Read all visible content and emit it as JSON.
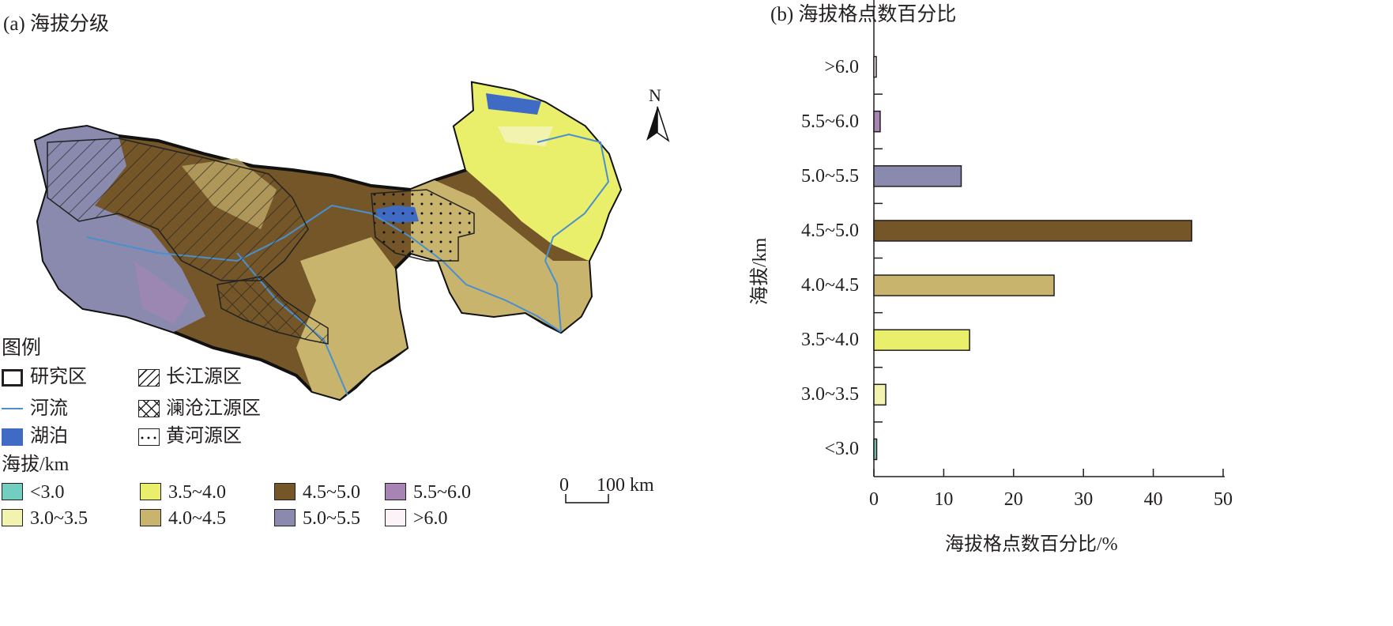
{
  "panel_a": {
    "title": "(a) 海拔分级",
    "north_label": "N",
    "scale_bar": {
      "zero": "0",
      "distance": "100 km"
    },
    "legend": {
      "title": "图例",
      "items": [
        {
          "label": "研究区",
          "symbol": "outline"
        },
        {
          "label": "长江源区",
          "symbol": "diagonal-hatch"
        },
        {
          "label": "河流",
          "symbol": "line",
          "color": "#4a8fd0"
        },
        {
          "label": "澜沧江源区",
          "symbol": "cross-hatch"
        },
        {
          "label": "湖泊",
          "symbol": "fill",
          "color": "#3f6bc4"
        },
        {
          "label": "黄河源区",
          "symbol": "dots"
        }
      ],
      "elevation_title": "海拔/km",
      "elevation_classes": [
        {
          "label": "<3.0",
          "color": "#72cfc0"
        },
        {
          "label": "3.0~3.5",
          "color": "#f3f3b0"
        },
        {
          "label": "3.5~4.0",
          "color": "#e9ef6a"
        },
        {
          "label": "4.0~4.5",
          "color": "#c8b46c"
        },
        {
          "label": "4.5~5.0",
          "color": "#745628"
        },
        {
          "label": "5.0~5.5",
          "color": "#8a8aae"
        },
        {
          "label": "5.5~6.0",
          "color": "#a884b4"
        },
        {
          "label": ">6.0",
          "color": "#fbf3f8"
        }
      ]
    }
  },
  "chart_data": {
    "type": "bar",
    "orientation": "horizontal",
    "title": "(b) 海拔格点数百分比",
    "xlabel": "海拔格点数百分比/%",
    "ylabel": "海拔/km",
    "categories": [
      "<3.0",
      "3.0~3.5",
      "3.5~4.0",
      "4.0~4.5",
      "4.5~5.0",
      "5.0~5.5",
      "5.5~6.0",
      ">6.0"
    ],
    "values": [
      0.4,
      1.7,
      13.7,
      25.8,
      45.5,
      12.5,
      0.9,
      0.3
    ],
    "colors": [
      "#72cfc0",
      "#f3f3b0",
      "#e9ef6a",
      "#c8b46c",
      "#745628",
      "#8a8aae",
      "#a884b4",
      "#fbf3f8"
    ],
    "xlim": [
      0,
      50
    ],
    "xticks": [
      "0",
      "10",
      "20",
      "30",
      "40",
      "50"
    ],
    "grid": false
  }
}
